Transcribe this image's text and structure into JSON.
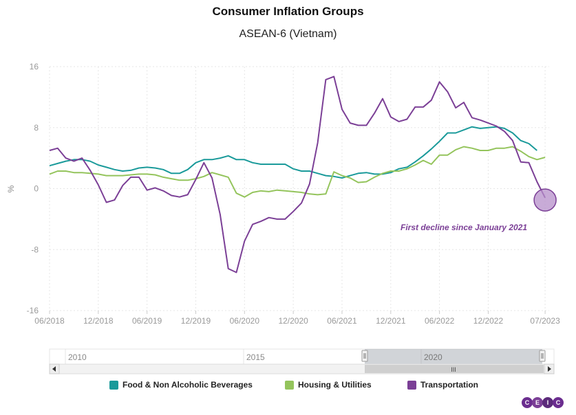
{
  "chart_data": {
    "type": "line",
    "title": "Consumer Inflation Groups",
    "subtitle": "ASEAN-6 (Vietnam)",
    "ylabel": "%",
    "ylim": [
      -16,
      16
    ],
    "y_ticks": [
      "16",
      "8",
      "0",
      "-8",
      "-16"
    ],
    "y_tick_values": [
      16,
      8,
      0,
      -8,
      -16
    ],
    "x_start_month": 0,
    "x_end_month": 60,
    "x_ticks": [
      {
        "label": "06/2018",
        "month": 0
      },
      {
        "label": "12/2018",
        "month": 6
      },
      {
        "label": "06/2019",
        "month": 12
      },
      {
        "label": "12/2019",
        "month": 18
      },
      {
        "label": "06/2020",
        "month": 24
      },
      {
        "label": "12/2020",
        "month": 30
      },
      {
        "label": "06/2021",
        "month": 36
      },
      {
        "label": "12/2021",
        "month": 42
      },
      {
        "label": "06/2022",
        "month": 48
      },
      {
        "label": "12/2022",
        "month": 54
      },
      {
        "label": "07/2023",
        "month": 61
      }
    ],
    "series": [
      {
        "name": "Food & Non Alcoholic Beverages",
        "color": "#1a9a9a",
        "values": [
          3.0,
          3.3,
          3.6,
          3.8,
          3.8,
          3.6,
          3.1,
          2.8,
          2.5,
          2.3,
          2.4,
          2.7,
          2.8,
          2.7,
          2.5,
          2.0,
          2.0,
          2.5,
          3.4,
          3.8,
          3.8,
          4.0,
          4.3,
          3.8,
          3.8,
          3.4,
          3.2,
          3.2,
          3.2,
          3.2,
          2.6,
          2.3,
          2.3,
          2.0,
          1.7,
          1.6,
          1.4,
          1.7,
          2.0,
          2.1,
          1.9,
          1.9,
          2.1,
          2.6,
          2.8,
          3.5,
          4.3,
          5.2,
          6.2,
          7.3,
          7.3,
          7.7,
          8.1,
          7.9,
          8.0,
          8.1,
          7.9,
          7.3,
          6.3,
          5.9,
          5.0
        ],
        "start_month": 0
      },
      {
        "name": "Housing & Utilities",
        "color": "#94c45c",
        "values": [
          1.9,
          2.3,
          2.3,
          2.1,
          2.1,
          2.0,
          1.9,
          1.7,
          1.7,
          1.7,
          1.8,
          1.9,
          1.9,
          1.8,
          1.5,
          1.3,
          1.1,
          1.1,
          1.3,
          1.6,
          2.1,
          1.8,
          1.5,
          -0.6,
          -1.1,
          -0.5,
          -0.3,
          -0.4,
          -0.2,
          -0.3,
          -0.4,
          -0.5,
          -0.7,
          -0.8,
          -0.7,
          2.2,
          1.7,
          1.4,
          0.8,
          0.9,
          1.5,
          2.0,
          2.3,
          2.3,
          2.6,
          3.1,
          3.7,
          3.2,
          4.4,
          4.4,
          5.1,
          5.5,
          5.3,
          5.0,
          5.0,
          5.3,
          5.3,
          5.5,
          4.9,
          4.2,
          3.8,
          4.1
        ],
        "start_month": 0
      },
      {
        "name": "Transportation",
        "color": "#7b3f96",
        "values": [
          5.0,
          5.3,
          4.0,
          3.6,
          4.0,
          2.4,
          0.5,
          -1.8,
          -1.5,
          0.4,
          1.5,
          1.5,
          -0.2,
          0.1,
          -0.3,
          -0.9,
          -1.1,
          -0.8,
          1.2,
          3.4,
          1.4,
          -3.4,
          -10.5,
          -11.0,
          -6.9,
          -4.7,
          -4.3,
          -3.8,
          -4.0,
          -4.0,
          -3.0,
          -1.9,
          0.6,
          6.0,
          14.3,
          14.7,
          10.4,
          8.6,
          8.3,
          8.3,
          9.9,
          11.8,
          9.4,
          8.8,
          9.1,
          10.7,
          10.7,
          11.6,
          14.0,
          12.7,
          10.6,
          11.3,
          9.3,
          9.0,
          8.6,
          8.2,
          7.5,
          6.3,
          3.5,
          3.4,
          0.9,
          -1.2
        ],
        "start_month": 0
      }
    ],
    "annotation": {
      "text": "First decline since January 2021",
      "month": 61,
      "value": -1.5
    }
  },
  "navigator": {
    "years": [
      "2010",
      "2015",
      "2020"
    ],
    "grip_label": "III"
  },
  "legend": [
    {
      "label": "Food & Non Alcoholic Beverages",
      "color": "#1a9a9a"
    },
    {
      "label": "Housing & Utilities",
      "color": "#94c45c"
    },
    {
      "label": "Transportation",
      "color": "#7b3f96"
    }
  ],
  "logo": {
    "letters": [
      "C",
      "E",
      "I",
      "C"
    ],
    "colors": [
      "#6b2d8f",
      "#7b3f96",
      "#5b2a7a",
      "#6b2d8f"
    ]
  }
}
